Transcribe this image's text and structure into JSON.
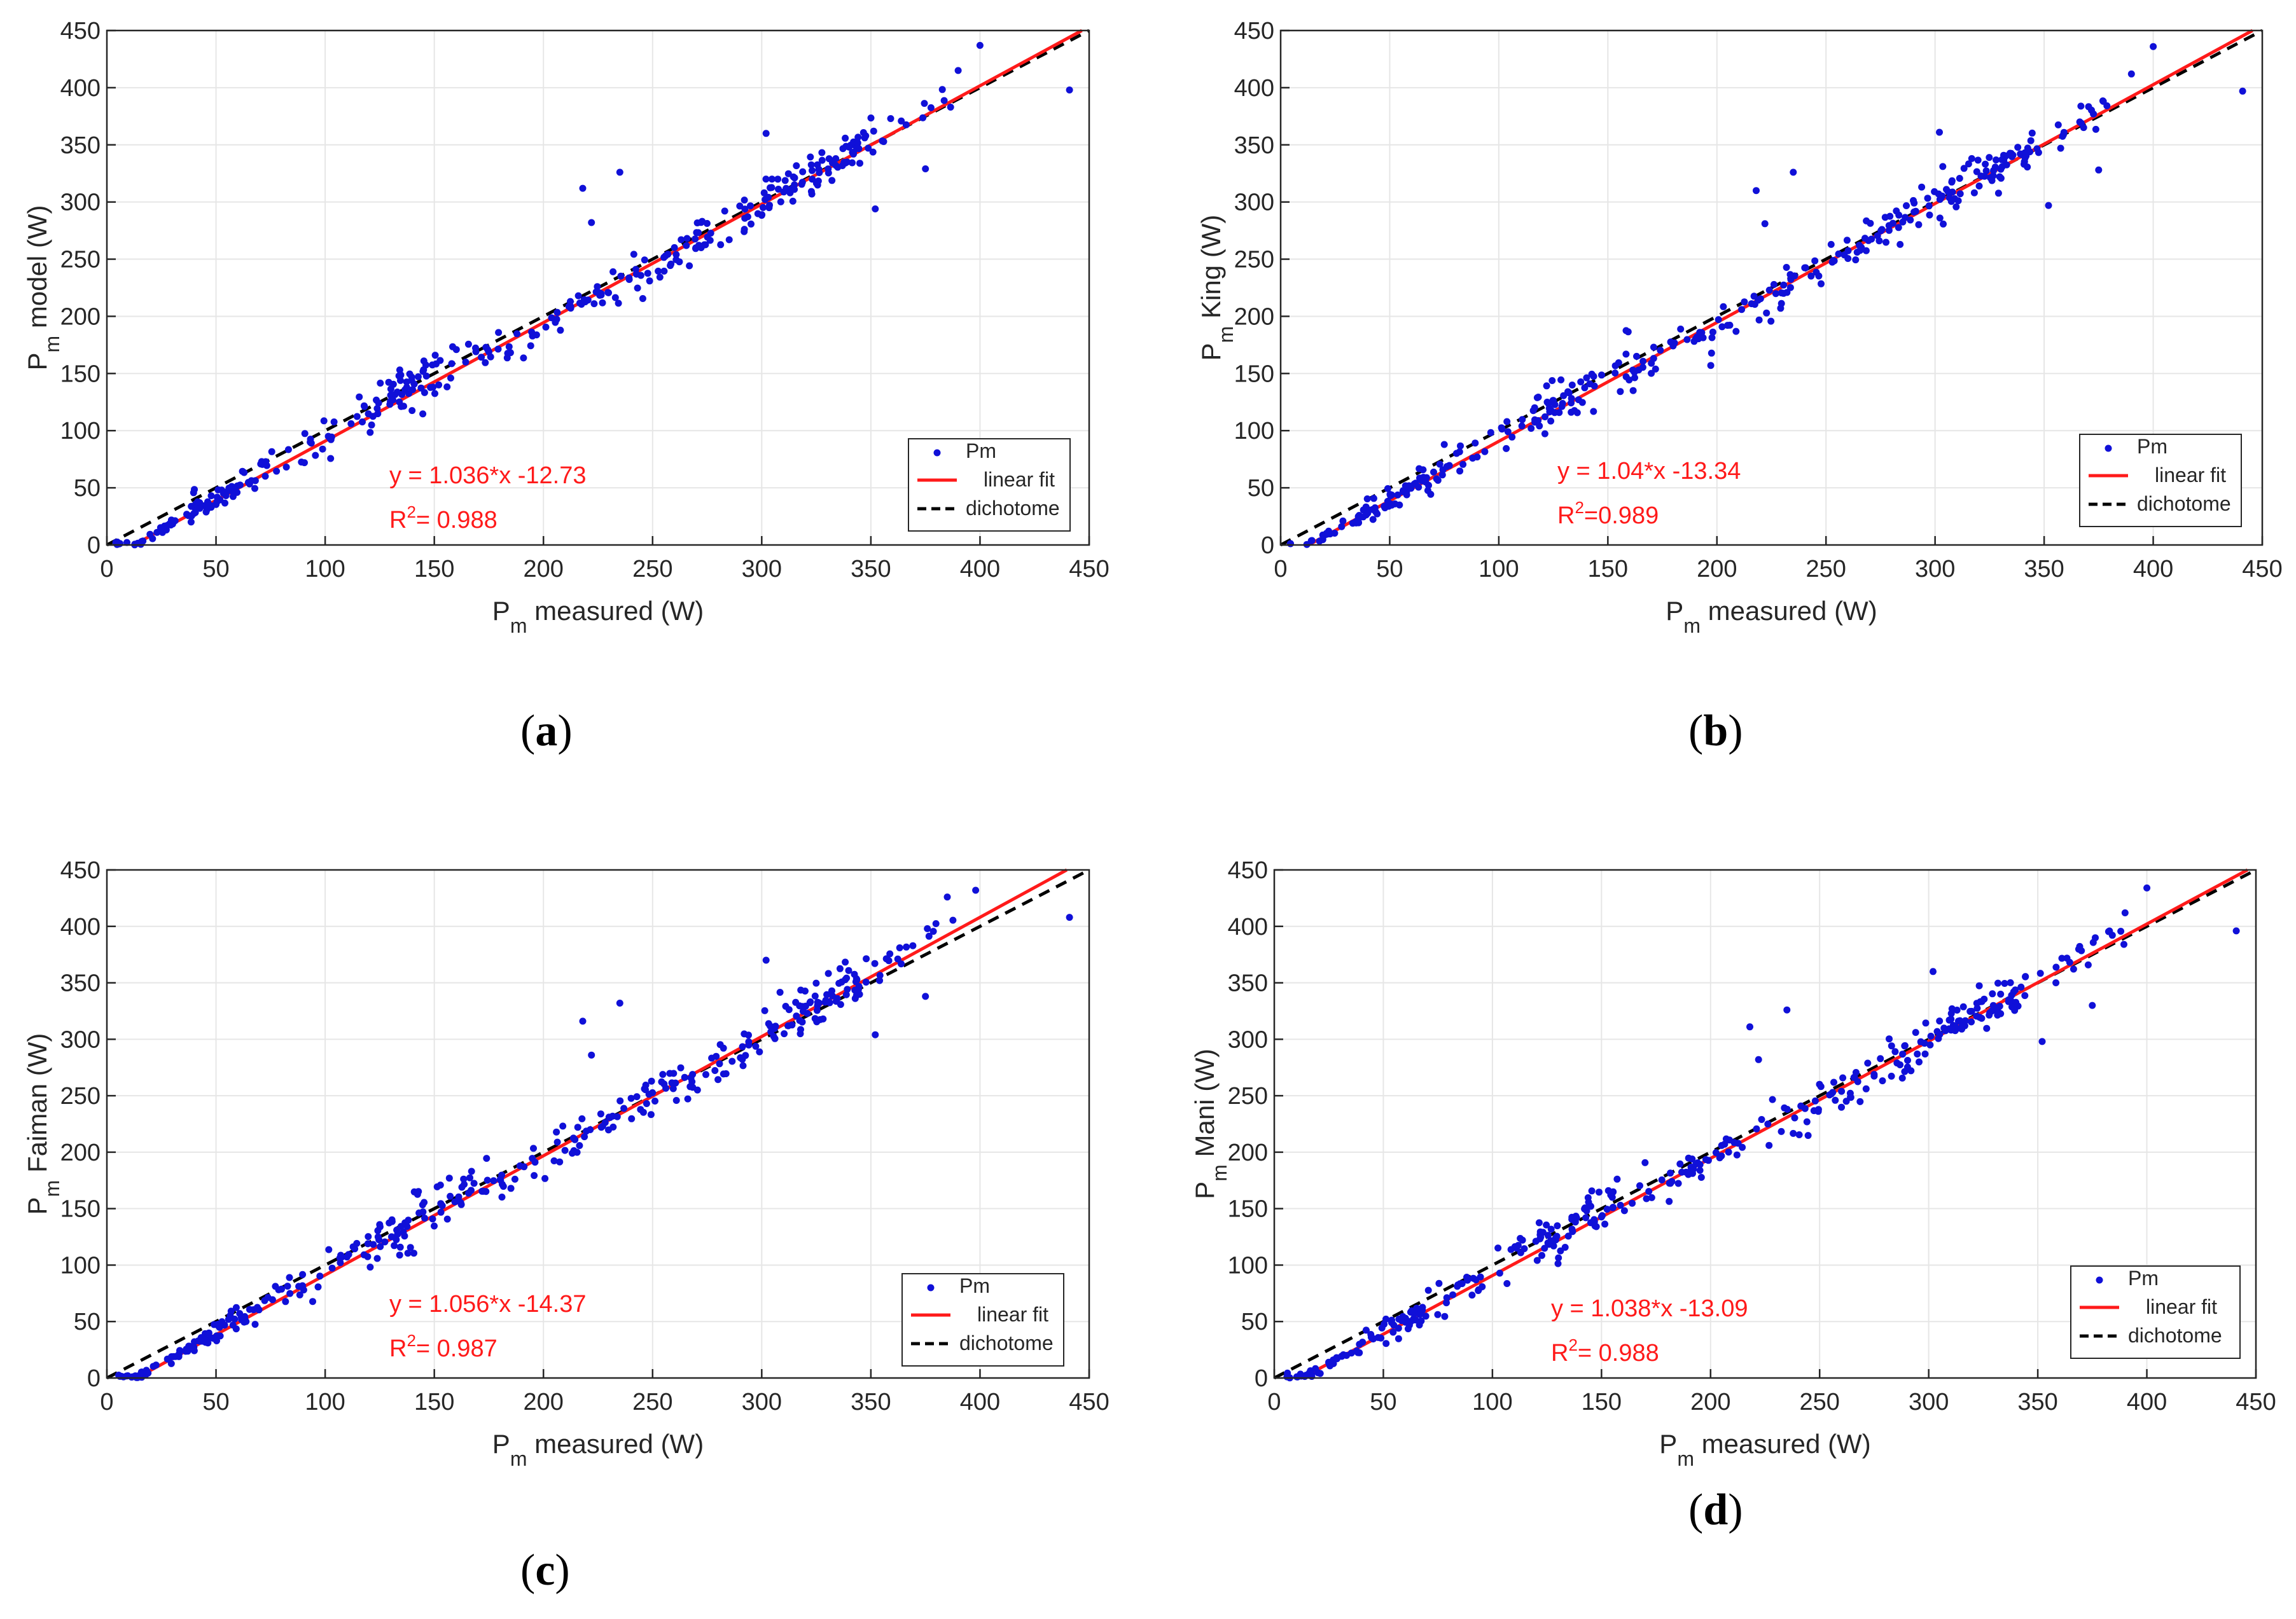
{
  "figure": {
    "panels": [
      {
        "label_open": "(",
        "label_letter": "a",
        "label_close": ")"
      },
      {
        "label_open": "(",
        "label_letter": "b",
        "label_close": ")"
      },
      {
        "label_open": "(",
        "label_letter": "c",
        "label_close": ")"
      },
      {
        "label_open": "(",
        "label_letter": "d",
        "label_close": ")"
      }
    ]
  },
  "colors": {
    "points": "#1010d8",
    "fit": "#ff1a1a",
    "dichotome": "#000000",
    "grid": "#e6e6e6",
    "axis": "#262626",
    "annotation": "#ff1a1a"
  },
  "chart_data": [
    {
      "type": "scatter",
      "xlabel_main": "P",
      "xlabel_sub": "m",
      "xlabel_rest": " measured (W)",
      "ylabel_main": "P",
      "ylabel_sub": "m",
      "ylabel_rest": " model (W)",
      "xlim": [
        0,
        450
      ],
      "ylim": [
        0,
        450
      ],
      "xticks": [
        0,
        50,
        100,
        150,
        200,
        250,
        300,
        350,
        400,
        450
      ],
      "yticks": [
        0,
        50,
        100,
        150,
        200,
        250,
        300,
        350,
        400,
        450
      ],
      "grid": true,
      "legend": [
        "Pm",
        "linear fit",
        "dichotome"
      ],
      "legend_position": "bottom-right",
      "fit": {
        "slope": 1.036,
        "intercept": -12.73
      },
      "annotation_eq": "y = 1.036*x -12.73",
      "annotation_r2_base": "R",
      "annotation_r2_sup": "2",
      "annotation_r2_rest": "= 0.988",
      "outliers": [
        [
          218,
          312
        ],
        [
          222,
          282
        ],
        [
          235,
          326
        ],
        [
          302,
          360
        ],
        [
          352,
          294
        ],
        [
          375,
          329
        ],
        [
          390,
          415
        ],
        [
          400,
          437
        ],
        [
          441,
          398
        ]
      ],
      "seed": 11
    },
    {
      "type": "scatter",
      "xlabel_main": "P",
      "xlabel_sub": "m",
      "xlabel_rest": " measured (W)",
      "ylabel_main": "P",
      "ylabel_sub": "m",
      "ylabel_rest": " King (W)",
      "xlim": [
        0,
        450
      ],
      "ylim": [
        0,
        450
      ],
      "xticks": [
        0,
        50,
        100,
        150,
        200,
        250,
        300,
        350,
        400,
        450
      ],
      "yticks": [
        0,
        50,
        100,
        150,
        200,
        250,
        300,
        350,
        400,
        450
      ],
      "grid": true,
      "legend": [
        "Pm",
        "linear fit",
        "dichotome"
      ],
      "legend_position": "bottom-right",
      "fit": {
        "slope": 1.04,
        "intercept": -13.34
      },
      "annotation_eq": "y = 1.04*x -13.34",
      "annotation_r2_base": "R",
      "annotation_r2_sup": "2",
      "annotation_r2_rest": "=0.989",
      "outliers": [
        [
          218,
          310
        ],
        [
          222,
          281
        ],
        [
          235,
          326
        ],
        [
          302,
          361
        ],
        [
          352,
          297
        ],
        [
          375,
          328
        ],
        [
          390,
          412
        ],
        [
          400,
          436
        ],
        [
          441,
          397
        ]
      ],
      "seed": 23
    },
    {
      "type": "scatter",
      "xlabel_main": "P",
      "xlabel_sub": "m",
      "xlabel_rest": " measured (W)",
      "ylabel_main": "P",
      "ylabel_sub": "m",
      "ylabel_rest": " Faiman (W)",
      "xlim": [
        0,
        450
      ],
      "ylim": [
        0,
        450
      ],
      "xticks": [
        0,
        50,
        100,
        150,
        200,
        250,
        300,
        350,
        400,
        450
      ],
      "yticks": [
        0,
        50,
        100,
        150,
        200,
        250,
        300,
        350,
        400,
        450
      ],
      "grid": true,
      "legend": [
        "Pm",
        "linear fit",
        "dichotome"
      ],
      "legend_position": "bottom-right",
      "fit": {
        "slope": 1.056,
        "intercept": -14.37
      },
      "annotation_eq": "y = 1.056*x -14.37",
      "annotation_r2_base": "R",
      "annotation_r2_sup": "2",
      "annotation_r2_rest": "= 0.987",
      "outliers": [
        [
          218,
          316
        ],
        [
          222,
          286
        ],
        [
          235,
          332
        ],
        [
          302,
          370
        ],
        [
          352,
          304
        ],
        [
          375,
          338
        ],
        [
          385,
          426
        ],
        [
          398,
          432
        ],
        [
          441,
          408
        ]
      ],
      "seed": 37
    },
    {
      "type": "scatter",
      "xlabel_main": "P",
      "xlabel_sub": "m",
      "xlabel_rest": " measured (W)",
      "ylabel_main": "P",
      "ylabel_sub": "m",
      "ylabel_rest": " Mani (W)",
      "xlim": [
        0,
        450
      ],
      "ylim": [
        0,
        450
      ],
      "xticks": [
        0,
        50,
        100,
        150,
        200,
        250,
        300,
        350,
        400,
        450
      ],
      "yticks": [
        0,
        50,
        100,
        150,
        200,
        250,
        300,
        350,
        400,
        450
      ],
      "grid": true,
      "legend": [
        "Pm",
        "linear fit",
        "dichotome"
      ],
      "legend_position": "bottom-right",
      "fit": {
        "slope": 1.038,
        "intercept": -13.09
      },
      "annotation_eq": "y = 1.038*x -13.09",
      "annotation_r2_base": "R",
      "annotation_r2_sup": "2",
      "annotation_r2_rest": "= 0.988",
      "outliers": [
        [
          218,
          311
        ],
        [
          222,
          282
        ],
        [
          235,
          326
        ],
        [
          302,
          360
        ],
        [
          352,
          298
        ],
        [
          375,
          330
        ],
        [
          390,
          412
        ],
        [
          400,
          434
        ],
        [
          441,
          396
        ]
      ],
      "seed": 53
    }
  ]
}
